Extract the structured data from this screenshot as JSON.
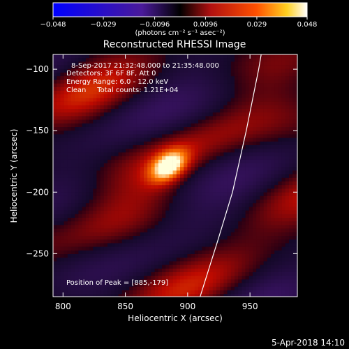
{
  "chart_data": {
    "type": "heatmap",
    "title": "Reconstructed RHESSI Image",
    "xlabel": "Heliocentric X (arcsec)",
    "ylabel": "Heliocentric Y (arcsec)",
    "xlim": [
      792,
      988
    ],
    "ylim": [
      -285,
      -88
    ],
    "x_ticks": [
      800,
      850,
      900,
      950
    ],
    "y_ticks": [
      -100,
      -150,
      -200,
      -250
    ],
    "colorbar": {
      "range": [
        -0.048,
        0.048
      ],
      "tick_values": [
        -0.048,
        -0.029,
        -0.0096,
        0.0096,
        0.029,
        0.048
      ],
      "tick_labels": [
        "−0.048",
        "−0.029",
        "−0.0096",
        "0.0096",
        "0.029",
        "0.048"
      ],
      "unit_label": "(photons cm⁻² s⁻¹ asec⁻²)",
      "colors": [
        "#0000ff",
        "#4a1a9a",
        "#b01010",
        "#ff4a00",
        "#ffd020",
        "#ffffff"
      ]
    },
    "annotations": [
      "8-Sep-2017 21:32:48.000 to 21:35:48.000",
      "Detectors: 3F 6F 8F, Att 0",
      "Energy Range: 6.0 - 12.0 keV",
      "Clean     Total counts: 1.21E+04"
    ],
    "peak_label": "Position of Peak = [885,-179]",
    "peak": {
      "x": 885,
      "y": -179
    },
    "limb_x_at_y": [
      [
        910,
        -285
      ],
      [
        924,
        -240
      ],
      [
        936,
        -200
      ],
      [
        947,
        -150
      ],
      [
        957,
        -100
      ],
      [
        959,
        -88
      ]
    ],
    "footer": "5-Apr-2018 14:10"
  }
}
